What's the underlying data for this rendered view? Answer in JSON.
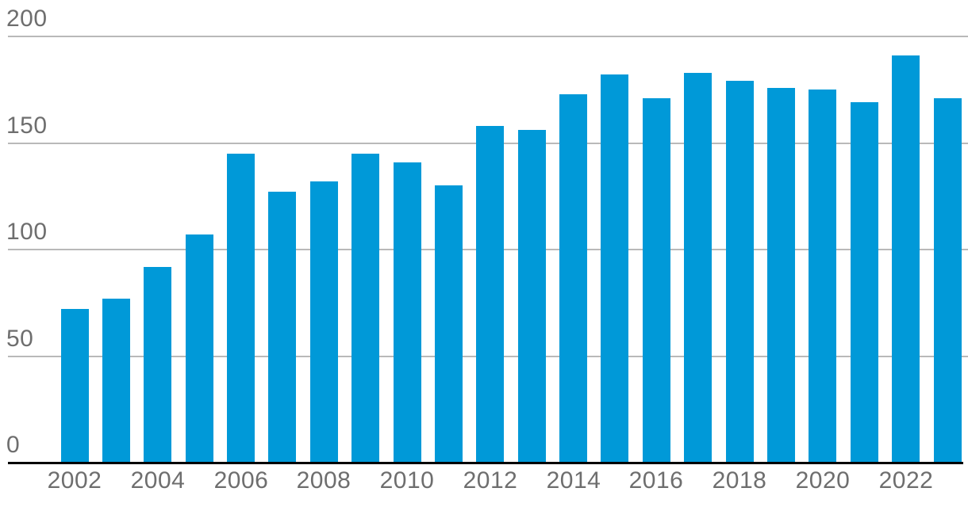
{
  "chart_data": {
    "type": "bar",
    "categories": [
      "2002",
      "2003",
      "2004",
      "2005",
      "2006",
      "2007",
      "2008",
      "2009",
      "2010",
      "2011",
      "2012",
      "2013",
      "2014",
      "2015",
      "2016",
      "2017",
      "2018",
      "2019",
      "2020",
      "2021",
      "2022",
      "2023"
    ],
    "values": [
      72,
      77,
      92,
      107,
      145,
      127,
      132,
      145,
      141,
      130,
      158,
      156,
      173,
      182,
      171,
      183,
      179,
      176,
      175,
      169,
      191,
      171
    ],
    "title": "",
    "xlabel": "",
    "ylabel": "",
    "ylim": [
      0,
      200
    ],
    "yticks": [
      0,
      50,
      100,
      150,
      200
    ],
    "ytick_labels": [
      "0",
      "50",
      "100",
      "150",
      "200"
    ],
    "xtick_labels": [
      "2002",
      "2004",
      "2006",
      "2008",
      "2010",
      "2012",
      "2014",
      "2016",
      "2018",
      "2020",
      "2022"
    ],
    "xticks_every": 2,
    "grid": true,
    "legend": false,
    "colors": {
      "bar": "#0099d8",
      "gridline": "#b9b9b9",
      "axis_line": "#000000",
      "tick_label": "#6e6e6e",
      "background": "#ffffff"
    }
  }
}
